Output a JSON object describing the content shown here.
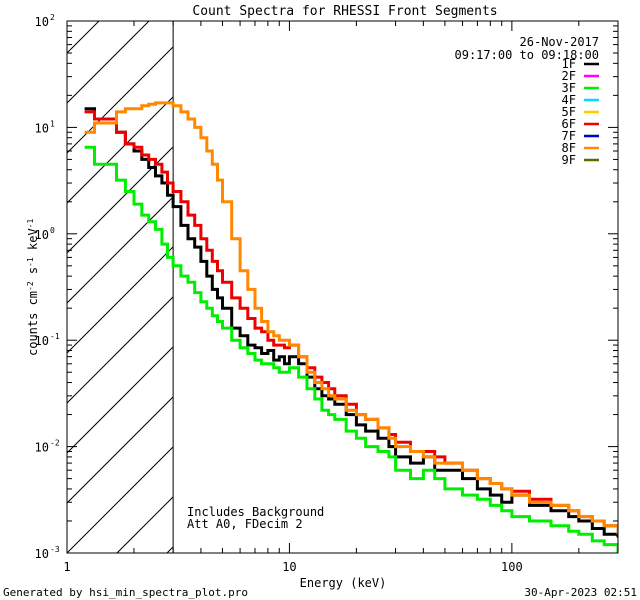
{
  "chart_data": {
    "type": "line",
    "title": "Count Spectra for RHESSI Front Segments",
    "xlabel": "Energy (keV)",
    "ylabel_base": "counts cm",
    "ylabel_exp1": "-2",
    "ylabel_mid": " s",
    "ylabel_exp2": "-1",
    "ylabel_tail": " keV",
    "ylabel_exp3": "-1",
    "xscale": "log",
    "yscale": "log",
    "xlim": [
      1,
      300
    ],
    "ylim": [
      0.001,
      100
    ],
    "x_ticks": [
      {
        "value": 1,
        "label": "1"
      },
      {
        "value": 10,
        "label": "10"
      },
      {
        "value": 100,
        "label": "100"
      }
    ],
    "y_ticks": [
      {
        "value": 0.001,
        "base": "10",
        "exp": "-3"
      },
      {
        "value": 0.01,
        "base": "10",
        "exp": "-2"
      },
      {
        "value": 0.1,
        "base": "10",
        "exp": "-1"
      },
      {
        "value": 1,
        "base": "10",
        "exp": "0"
      },
      {
        "value": 10,
        "base": "10",
        "exp": "1"
      },
      {
        "value": 100,
        "base": "10",
        "exp": "2"
      }
    ],
    "hatched_region": {
      "xmax": 3
    },
    "date": "26-Nov-2017",
    "time_range": "09:17:00 to 09:18:00",
    "annotation_line1": "Includes Background",
    "annotation_line2": "Att A0, FDecim 2",
    "legend": [
      {
        "label": "1F",
        "color": "#000000"
      },
      {
        "label": "2F",
        "color": "#ff00ff"
      },
      {
        "label": "3F",
        "color": "#00ee00"
      },
      {
        "label": "4F",
        "color": "#00ddff"
      },
      {
        "label": "5F",
        "color": "#ffcc00"
      },
      {
        "label": "6F",
        "color": "#ee0000"
      },
      {
        "label": "7F",
        "color": "#0000cc"
      },
      {
        "label": "8F",
        "color": "#ff8800"
      },
      {
        "label": "9F",
        "color": "#666600"
      }
    ],
    "series": [
      {
        "name": "1F",
        "color": "#000000",
        "x": [
          1.2,
          1.33,
          1.5,
          1.67,
          1.83,
          2.0,
          2.17,
          2.33,
          2.5,
          2.67,
          2.83,
          3.0,
          3.25,
          3.5,
          3.75,
          4.0,
          4.25,
          4.5,
          4.75,
          5.0,
          5.5,
          6.0,
          6.5,
          7.0,
          7.5,
          8.0,
          8.5,
          9.0,
          9.5,
          10,
          11,
          12,
          13,
          14,
          15,
          16,
          18,
          20,
          22,
          25,
          28,
          30,
          35,
          40,
          45,
          50,
          60,
          70,
          80,
          90,
          100,
          120,
          150,
          180,
          200,
          230,
          260,
          300
        ],
        "y": [
          15,
          12,
          12,
          9,
          7,
          6,
          5,
          4.2,
          3.5,
          3.0,
          2.3,
          1.8,
          1.2,
          0.9,
          0.75,
          0.55,
          0.4,
          0.3,
          0.25,
          0.2,
          0.13,
          0.11,
          0.09,
          0.085,
          0.075,
          0.08,
          0.065,
          0.07,
          0.06,
          0.07,
          0.06,
          0.045,
          0.035,
          0.03,
          0.028,
          0.025,
          0.02,
          0.016,
          0.014,
          0.012,
          0.01,
          0.008,
          0.007,
          0.008,
          0.006,
          0.006,
          0.005,
          0.004,
          0.0035,
          0.003,
          0.0035,
          0.0028,
          0.0025,
          0.0022,
          0.002,
          0.0017,
          0.0015,
          0.0014
        ]
      },
      {
        "name": "3F",
        "color": "#00ee00",
        "x": [
          1.2,
          1.33,
          1.5,
          1.67,
          1.83,
          2.0,
          2.17,
          2.33,
          2.5,
          2.67,
          2.83,
          3.0,
          3.25,
          3.5,
          3.75,
          4.0,
          4.25,
          4.5,
          4.75,
          5.0,
          5.5,
          6.0,
          6.5,
          7.0,
          7.5,
          8.0,
          8.5,
          9.0,
          9.5,
          10,
          11,
          12,
          13,
          14,
          15,
          16,
          18,
          20,
          22,
          25,
          28,
          30,
          35,
          40,
          45,
          50,
          60,
          70,
          80,
          90,
          100,
          120,
          150,
          180,
          200,
          230,
          260,
          300
        ],
        "y": [
          6.5,
          4.5,
          4.5,
          3.2,
          2.5,
          1.9,
          1.5,
          1.3,
          1.1,
          0.8,
          0.6,
          0.5,
          0.4,
          0.35,
          0.28,
          0.23,
          0.2,
          0.17,
          0.15,
          0.13,
          0.1,
          0.085,
          0.075,
          0.065,
          0.06,
          0.06,
          0.055,
          0.05,
          0.05,
          0.055,
          0.045,
          0.035,
          0.028,
          0.022,
          0.02,
          0.018,
          0.014,
          0.012,
          0.01,
          0.009,
          0.008,
          0.006,
          0.005,
          0.006,
          0.005,
          0.004,
          0.0035,
          0.0032,
          0.0028,
          0.0025,
          0.0022,
          0.002,
          0.0018,
          0.0016,
          0.0015,
          0.0013,
          0.0012,
          0.001
        ]
      },
      {
        "name": "6F",
        "color": "#ee0000",
        "x": [
          1.2,
          1.33,
          1.5,
          1.67,
          1.83,
          2.0,
          2.17,
          2.33,
          2.5,
          2.67,
          2.83,
          3.0,
          3.25,
          3.5,
          3.75,
          4.0,
          4.25,
          4.5,
          4.75,
          5.0,
          5.5,
          6.0,
          6.5,
          7.0,
          7.5,
          8.0,
          8.5,
          9.0,
          9.5,
          10,
          11,
          12,
          13,
          14,
          15,
          16,
          18,
          20,
          22,
          25,
          28,
          30,
          35,
          40,
          45,
          50,
          60,
          70,
          80,
          90,
          100,
          120,
          150,
          180,
          200,
          230,
          260,
          300
        ],
        "y": [
          14,
          12,
          12,
          9,
          7,
          6.5,
          5.5,
          5.0,
          4.5,
          3.8,
          3.0,
          2.5,
          2.0,
          1.5,
          1.2,
          0.9,
          0.7,
          0.55,
          0.45,
          0.35,
          0.25,
          0.2,
          0.16,
          0.13,
          0.12,
          0.1,
          0.09,
          0.09,
          0.085,
          0.09,
          0.07,
          0.055,
          0.045,
          0.04,
          0.035,
          0.03,
          0.025,
          0.02,
          0.018,
          0.015,
          0.013,
          0.011,
          0.009,
          0.009,
          0.008,
          0.007,
          0.006,
          0.005,
          0.0045,
          0.004,
          0.0038,
          0.0032,
          0.0028,
          0.0025,
          0.0022,
          0.002,
          0.0018,
          0.0016
        ]
      },
      {
        "name": "8F",
        "color": "#ff8800",
        "x": [
          1.2,
          1.33,
          1.5,
          1.67,
          1.83,
          2.0,
          2.17,
          2.33,
          2.5,
          2.67,
          2.83,
          3.0,
          3.25,
          3.5,
          3.75,
          4.0,
          4.25,
          4.5,
          4.75,
          5.0,
          5.5,
          6.0,
          6.5,
          7.0,
          7.5,
          8.0,
          8.5,
          9.0,
          9.5,
          10,
          11,
          12,
          13,
          14,
          15,
          16,
          18,
          20,
          22,
          25,
          28,
          30,
          35,
          40,
          45,
          50,
          60,
          70,
          80,
          90,
          100,
          120,
          150,
          180,
          200,
          230,
          260,
          300
        ],
        "y": [
          9,
          11,
          11,
          14,
          15,
          15,
          16,
          16.5,
          17,
          17,
          17,
          16,
          14,
          12,
          10,
          8,
          6,
          4.5,
          3.2,
          2.0,
          0.9,
          0.45,
          0.3,
          0.2,
          0.15,
          0.12,
          0.11,
          0.1,
          0.1,
          0.09,
          0.07,
          0.05,
          0.04,
          0.035,
          0.03,
          0.028,
          0.022,
          0.02,
          0.018,
          0.015,
          0.012,
          0.01,
          0.009,
          0.008,
          0.007,
          0.007,
          0.006,
          0.005,
          0.0045,
          0.004,
          0.0035,
          0.003,
          0.0028,
          0.0025,
          0.0022,
          0.002,
          0.0018,
          0.0015
        ]
      }
    ]
  },
  "footer": {
    "left": "Generated by hsi_min_spectra_plot.pro",
    "right": "30-Apr-2023 02:51"
  }
}
